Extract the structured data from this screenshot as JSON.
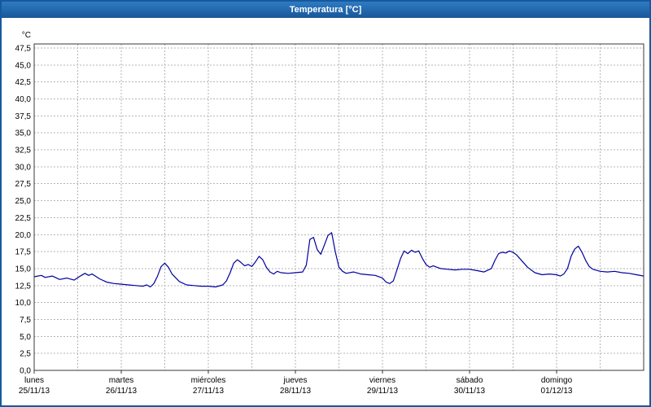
{
  "window": {
    "title": "Temperatura [°C]"
  },
  "colors": {
    "titlebar": "#1b63ae",
    "window_border": "#17599e",
    "series_line": "#0000a0",
    "grid": "#b5b5b5",
    "plot_border": "#3a3a3a",
    "text": "#000000",
    "background": "#ffffff"
  },
  "chart_data": {
    "type": "line",
    "title": "Temperatura [°C]",
    "y_unit": "°C",
    "ylim": [
      0,
      47.5
    ],
    "y_tick_step": 2.5,
    "grid": true,
    "legend": "none",
    "x_range_hours": [
      0,
      168
    ],
    "x_grid_step_hours": 12,
    "y_ticks": [
      {
        "value": 47.5,
        "label": "47,5"
      },
      {
        "value": 45.0,
        "label": "45,0"
      },
      {
        "value": 42.5,
        "label": "42,5"
      },
      {
        "value": 40.0,
        "label": "40,0"
      },
      {
        "value": 37.5,
        "label": "37,5"
      },
      {
        "value": 35.0,
        "label": "35,0"
      },
      {
        "value": 32.5,
        "label": "32,5"
      },
      {
        "value": 30.0,
        "label": "30,0"
      },
      {
        "value": 27.5,
        "label": "27,5"
      },
      {
        "value": 25.0,
        "label": "25,0"
      },
      {
        "value": 22.5,
        "label": "22,5"
      },
      {
        "value": 20.0,
        "label": "20,0"
      },
      {
        "value": 17.5,
        "label": "17,5"
      },
      {
        "value": 15.0,
        "label": "15,0"
      },
      {
        "value": 12.5,
        "label": "12,5"
      },
      {
        "value": 10.0,
        "label": "10,0"
      },
      {
        "value": 7.5,
        "label": "7,5"
      },
      {
        "value": 5.0,
        "label": "5,0"
      },
      {
        "value": 2.5,
        "label": "2,5"
      },
      {
        "value": 0.0,
        "label": "0,0"
      }
    ],
    "x_ticks": [
      {
        "hour": 0,
        "day": "lunes",
        "date": "25/11/13"
      },
      {
        "hour": 24,
        "day": "martes",
        "date": "26/11/13"
      },
      {
        "hour": 48,
        "day": "miércoles",
        "date": "27/11/13"
      },
      {
        "hour": 72,
        "day": "jueves",
        "date": "28/11/13"
      },
      {
        "hour": 96,
        "day": "viernes",
        "date": "29/11/13"
      },
      {
        "hour": 120,
        "day": "sábado",
        "date": "30/11/13"
      },
      {
        "hour": 144,
        "day": "domingo",
        "date": "01/12/13"
      }
    ],
    "series": [
      {
        "name": "Temperatura",
        "color": "#0000a0",
        "points": [
          [
            0,
            13.8
          ],
          [
            2,
            14.0
          ],
          [
            3,
            13.7
          ],
          [
            5,
            13.9
          ],
          [
            7,
            13.4
          ],
          [
            9,
            13.6
          ],
          [
            11,
            13.3
          ],
          [
            13,
            14.0
          ],
          [
            14,
            14.3
          ],
          [
            15,
            14.0
          ],
          [
            16,
            14.2
          ],
          [
            18,
            13.5
          ],
          [
            20,
            13.0
          ],
          [
            22,
            12.8
          ],
          [
            24,
            12.7
          ],
          [
            26,
            12.6
          ],
          [
            28,
            12.5
          ],
          [
            30,
            12.4
          ],
          [
            31,
            12.6
          ],
          [
            32,
            12.3
          ],
          [
            33,
            12.8
          ],
          [
            34,
            13.9
          ],
          [
            35,
            15.3
          ],
          [
            36,
            15.8
          ],
          [
            37,
            15.2
          ],
          [
            38,
            14.2
          ],
          [
            40,
            13.1
          ],
          [
            42,
            12.6
          ],
          [
            44,
            12.5
          ],
          [
            46,
            12.4
          ],
          [
            48,
            12.4
          ],
          [
            50,
            12.3
          ],
          [
            52,
            12.6
          ],
          [
            53,
            13.2
          ],
          [
            54,
            14.4
          ],
          [
            55,
            15.8
          ],
          [
            56,
            16.3
          ],
          [
            57,
            15.9
          ],
          [
            58,
            15.4
          ],
          [
            59,
            15.6
          ],
          [
            60,
            15.3
          ],
          [
            61,
            16.0
          ],
          [
            62,
            16.8
          ],
          [
            63,
            16.3
          ],
          [
            64,
            15.2
          ],
          [
            65,
            14.5
          ],
          [
            66,
            14.2
          ],
          [
            67,
            14.6
          ],
          [
            68,
            14.4
          ],
          [
            70,
            14.3
          ],
          [
            72,
            14.4
          ],
          [
            74,
            14.5
          ],
          [
            75,
            15.5
          ],
          [
            76,
            19.3
          ],
          [
            77,
            19.6
          ],
          [
            78,
            17.8
          ],
          [
            79,
            17.1
          ],
          [
            80,
            18.5
          ],
          [
            81,
            19.9
          ],
          [
            82,
            20.3
          ],
          [
            83,
            17.5
          ],
          [
            84,
            15.2
          ],
          [
            85,
            14.6
          ],
          [
            86,
            14.3
          ],
          [
            88,
            14.5
          ],
          [
            90,
            14.2
          ],
          [
            92,
            14.1
          ],
          [
            94,
            14.0
          ],
          [
            96,
            13.6
          ],
          [
            97,
            13.0
          ],
          [
            98,
            12.8
          ],
          [
            99,
            13.2
          ],
          [
            100,
            14.8
          ],
          [
            101,
            16.5
          ],
          [
            102,
            17.6
          ],
          [
            103,
            17.2
          ],
          [
            104,
            17.7
          ],
          [
            105,
            17.4
          ],
          [
            106,
            17.6
          ],
          [
            107,
            16.5
          ],
          [
            108,
            15.6
          ],
          [
            109,
            15.2
          ],
          [
            110,
            15.4
          ],
          [
            112,
            15.0
          ],
          [
            114,
            14.9
          ],
          [
            116,
            14.8
          ],
          [
            118,
            14.9
          ],
          [
            120,
            14.9
          ],
          [
            122,
            14.7
          ],
          [
            124,
            14.5
          ],
          [
            126,
            15.0
          ],
          [
            127,
            16.2
          ],
          [
            128,
            17.2
          ],
          [
            129,
            17.4
          ],
          [
            130,
            17.3
          ],
          [
            131,
            17.6
          ],
          [
            132,
            17.4
          ],
          [
            133,
            17.0
          ],
          [
            134,
            16.4
          ],
          [
            135,
            15.8
          ],
          [
            136,
            15.2
          ],
          [
            138,
            14.4
          ],
          [
            140,
            14.1
          ],
          [
            142,
            14.2
          ],
          [
            144,
            14.1
          ],
          [
            145,
            13.9
          ],
          [
            146,
            14.2
          ],
          [
            147,
            15.0
          ],
          [
            148,
            16.8
          ],
          [
            149,
            17.9
          ],
          [
            150,
            18.3
          ],
          [
            151,
            17.4
          ],
          [
            152,
            16.2
          ],
          [
            153,
            15.3
          ],
          [
            154,
            14.9
          ],
          [
            156,
            14.6
          ],
          [
            158,
            14.5
          ],
          [
            160,
            14.6
          ],
          [
            162,
            14.4
          ],
          [
            164,
            14.3
          ],
          [
            166,
            14.1
          ],
          [
            168,
            13.9
          ]
        ]
      }
    ]
  }
}
